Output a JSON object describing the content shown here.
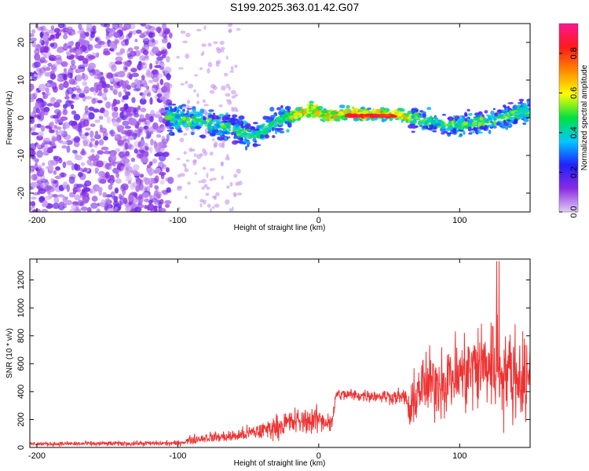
{
  "title": "S199.2025.363.01.42.G07",
  "chart_data": [
    {
      "type": "heatmap",
      "title": "S199.2025.363.01.42.G07",
      "xlabel": "Height of straight line (km)",
      "ylabel": "Frequency (Hz)",
      "xlim": [
        -205,
        150
      ],
      "ylim": [
        -25,
        25
      ],
      "xticks": [
        -200,
        -100,
        0,
        100
      ],
      "yticks": [
        -20,
        -10,
        0,
        10,
        20
      ],
      "colorbar": {
        "label": "Normalized spectral amplitude",
        "range": [
          0,
          0.95
        ],
        "ticks": [
          0.0,
          0.2,
          0.4,
          0.6,
          0.8
        ],
        "tick_labels": [
          "0.0",
          "0.2",
          "0.4",
          "0.6",
          "0.8"
        ],
        "colors": [
          "#e2cdf5",
          "#8a2be2",
          "#2020ff",
          "#00c8ff",
          "#00e040",
          "#ffff00",
          "#ff8800",
          "#ff1a1a",
          "#ff1493"
        ]
      },
      "ridge": [
        {
          "x": -105,
          "y": 0.0
        },
        {
          "x": -80,
          "y": -1.5
        },
        {
          "x": -60,
          "y": -3.0
        },
        {
          "x": -45,
          "y": -5.0
        },
        {
          "x": -35,
          "y": -2.0
        },
        {
          "x": -25,
          "y": 0.0
        },
        {
          "x": -15,
          "y": 1.0
        },
        {
          "x": -5,
          "y": 2.5
        },
        {
          "x": 5,
          "y": 0.5
        },
        {
          "x": 20,
          "y": 1.0
        },
        {
          "x": 40,
          "y": 1.0
        },
        {
          "x": 55,
          "y": 1.0
        },
        {
          "x": 65,
          "y": 0.0
        },
        {
          "x": 80,
          "y": -1.0
        },
        {
          "x": 100,
          "y": -2.0
        },
        {
          "x": 120,
          "y": -1.0
        },
        {
          "x": 150,
          "y": 2.0
        }
      ],
      "peak_region": {
        "x_start": 20,
        "x_end": 55,
        "y": 0.5,
        "amplitude": 0.9
      },
      "noise_region": {
        "x_start": -205,
        "x_end": -105,
        "amplitude": 0.15
      }
    },
    {
      "type": "line",
      "xlabel": "Height of straight line (km)",
      "ylabel": "SNR (10 * v/v)",
      "xlim": [
        -205,
        150
      ],
      "ylim": [
        0,
        1350
      ],
      "xticks": [
        -200,
        -100,
        0,
        100
      ],
      "yticks": [
        0,
        200,
        400,
        600,
        800,
        1000,
        1200
      ],
      "color": "#ee3333",
      "envelope": [
        {
          "x": -205,
          "mean": 25,
          "spread": 20
        },
        {
          "x": -100,
          "mean": 30,
          "spread": 25
        },
        {
          "x": -90,
          "mean": 55,
          "spread": 45
        },
        {
          "x": -80,
          "mean": 70,
          "spread": 50
        },
        {
          "x": -60,
          "mean": 80,
          "spread": 60
        },
        {
          "x": -40,
          "mean": 120,
          "spread": 90
        },
        {
          "x": -20,
          "mean": 180,
          "spread": 130
        },
        {
          "x": 0,
          "mean": 200,
          "spread": 130
        },
        {
          "x": 10,
          "mean": 180,
          "spread": 90
        },
        {
          "x": 12,
          "mean": 380,
          "spread": 60
        },
        {
          "x": 40,
          "mean": 370,
          "spread": 60
        },
        {
          "x": 62,
          "mean": 360,
          "spread": 80
        },
        {
          "x": 65,
          "mean": 220,
          "spread": 230
        },
        {
          "x": 70,
          "mean": 420,
          "spread": 300
        },
        {
          "x": 100,
          "mean": 520,
          "spread": 380
        },
        {
          "x": 125,
          "mean": 620,
          "spread": 520
        },
        {
          "x": 130,
          "mean": 560,
          "spread": 480
        },
        {
          "x": 150,
          "mean": 480,
          "spread": 400
        }
      ],
      "max_value": 1335
    }
  ]
}
